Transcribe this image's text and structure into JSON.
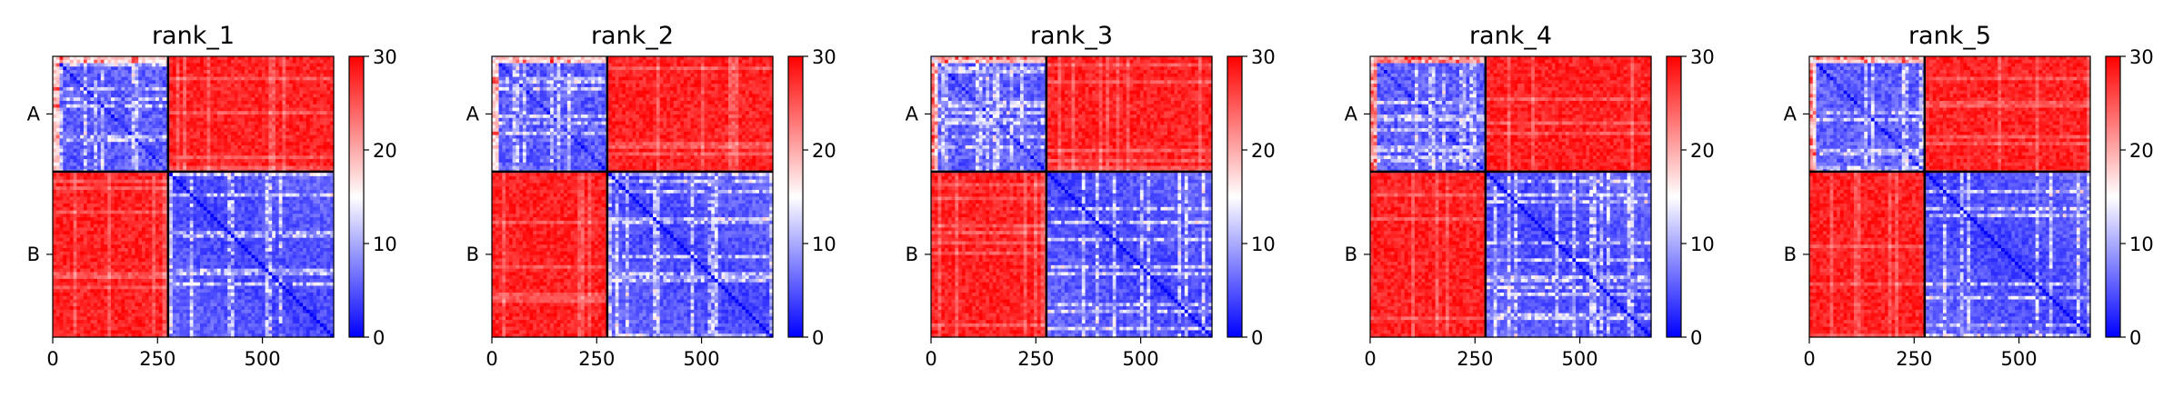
{
  "chart_data": {
    "type": "heatmap",
    "panels": [
      {
        "title": "rank_1"
      },
      {
        "title": "rank_2"
      },
      {
        "title": "rank_3"
      },
      {
        "title": "rank_4"
      },
      {
        "title": "rank_5"
      }
    ],
    "chains": [
      {
        "label": "A",
        "start": 0,
        "end": 275
      },
      {
        "label": "B",
        "start": 275,
        "end": 670
      }
    ],
    "xlim": [
      0,
      670
    ],
    "xticks": [
      0,
      250,
      500
    ],
    "colorbar": {
      "min": 0,
      "max": 30,
      "ticks": [
        0,
        10,
        20,
        30
      ],
      "colormap": [
        "#0000ff",
        "#ffffff",
        "#ff0000"
      ]
    },
    "colors": {
      "boundary": "#000000",
      "high": "#ff0000",
      "mid": "#ffffff",
      "low": "#0000ff"
    }
  }
}
